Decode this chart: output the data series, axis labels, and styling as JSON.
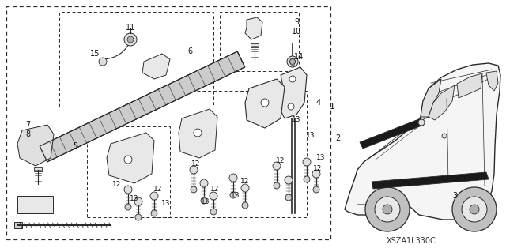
{
  "bg_color": "#ffffff",
  "line_color": "#2a2a2a",
  "image_code": "XSZA1L330C",
  "figsize": [
    6.4,
    3.19
  ],
  "dpi": 100
}
